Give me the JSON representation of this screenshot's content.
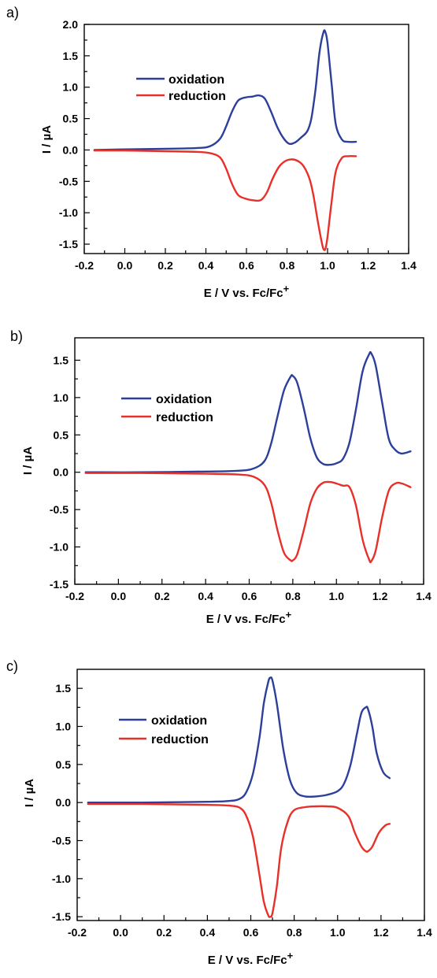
{
  "colors": {
    "oxidation": "#2c3f9a",
    "reduction": "#e8302a"
  },
  "chart_data": [
    {
      "type": "line",
      "panel_label": "a)",
      "xlabel": "E / V vs. Fc/Fc",
      "xlabel_sup": "+",
      "ylabel": "I / µA",
      "xlim": [
        -0.2,
        1.4
      ],
      "ylim": [
        -1.65,
        2.0
      ],
      "xticks": [
        -0.2,
        0.0,
        0.2,
        0.4,
        0.6,
        0.8,
        1.0,
        1.2,
        1.4
      ],
      "xtick_labels": [
        "-0.2",
        "0.0",
        "0.2",
        "0.4",
        "0.6",
        "0.8",
        "1.0",
        "1.2",
        "1.4"
      ],
      "yticks": [
        -1.5,
        -1.0,
        -0.5,
        0.0,
        0.5,
        1.0,
        1.5,
        2.0
      ],
      "ytick_labels": [
        "-1.5",
        "-1.0",
        "-0.5",
        "0.0",
        "0.5",
        "1.0",
        "1.5",
        "2.0"
      ],
      "legend": "upper-left",
      "series": [
        {
          "name": "oxidation",
          "x": [
            -0.15,
            0.0,
            0.2,
            0.35,
            0.42,
            0.47,
            0.5,
            0.53,
            0.56,
            0.6,
            0.63,
            0.66,
            0.69,
            0.72,
            0.75,
            0.78,
            0.81,
            0.84,
            0.87,
            0.9,
            0.92,
            0.94,
            0.96,
            0.98,
            0.99,
            1.0,
            1.02,
            1.04,
            1.07,
            1.1,
            1.14
          ],
          "y": [
            0.0,
            0.01,
            0.02,
            0.03,
            0.06,
            0.18,
            0.38,
            0.62,
            0.79,
            0.84,
            0.85,
            0.87,
            0.82,
            0.62,
            0.38,
            0.2,
            0.1,
            0.12,
            0.2,
            0.3,
            0.5,
            0.95,
            1.55,
            1.88,
            1.87,
            1.7,
            1.05,
            0.42,
            0.17,
            0.13,
            0.13
          ]
        },
        {
          "name": "reduction",
          "x": [
            -0.15,
            0.0,
            0.2,
            0.35,
            0.42,
            0.47,
            0.5,
            0.53,
            0.56,
            0.6,
            0.63,
            0.67,
            0.7,
            0.73,
            0.76,
            0.79,
            0.82,
            0.85,
            0.88,
            0.91,
            0.93,
            0.95,
            0.97,
            0.98,
            0.99,
            1.0,
            1.02,
            1.04,
            1.07,
            1.1,
            1.14
          ],
          "y": [
            -0.01,
            -0.01,
            -0.02,
            -0.03,
            -0.05,
            -0.12,
            -0.3,
            -0.55,
            -0.72,
            -0.78,
            -0.8,
            -0.8,
            -0.68,
            -0.45,
            -0.27,
            -0.18,
            -0.15,
            -0.17,
            -0.25,
            -0.45,
            -0.72,
            -1.1,
            -1.45,
            -1.58,
            -1.57,
            -1.38,
            -0.82,
            -0.35,
            -0.13,
            -0.1,
            -0.1
          ]
        }
      ]
    },
    {
      "type": "line",
      "panel_label": "b)",
      "xlabel": "E / V vs. Fc/Fc",
      "xlabel_sup": "+",
      "ylabel": "I / µA",
      "xlim": [
        -0.2,
        1.4
      ],
      "ylim": [
        -1.5,
        1.8
      ],
      "xticks": [
        -0.2,
        0.0,
        0.2,
        0.4,
        0.6,
        0.8,
        1.0,
        1.2,
        1.4
      ],
      "xtick_labels": [
        "-0.2",
        "0.0",
        "0.2",
        "0.4",
        "0.6",
        "0.8",
        "1.0",
        "1.2",
        "1.4"
      ],
      "yticks": [
        -1.5,
        -1.0,
        -0.5,
        0.0,
        0.5,
        1.0,
        1.5
      ],
      "ytick_labels": [
        "-1.5",
        "-1.0",
        "-0.5",
        "0.0",
        "0.5",
        "1.0",
        "1.5"
      ],
      "legend": "upper-left",
      "series": [
        {
          "name": "oxidation",
          "x": [
            -0.15,
            0.1,
            0.4,
            0.55,
            0.62,
            0.67,
            0.7,
            0.73,
            0.76,
            0.79,
            0.8,
            0.82,
            0.85,
            0.88,
            0.91,
            0.94,
            0.97,
            1.0,
            1.03,
            1.06,
            1.09,
            1.12,
            1.15,
            1.16,
            1.18,
            1.21,
            1.24,
            1.27,
            1.3,
            1.34
          ],
          "y": [
            0.0,
            0.0,
            0.01,
            0.02,
            0.05,
            0.15,
            0.38,
            0.75,
            1.1,
            1.28,
            1.29,
            1.2,
            0.86,
            0.46,
            0.2,
            0.11,
            0.1,
            0.12,
            0.18,
            0.4,
            0.85,
            1.35,
            1.58,
            1.59,
            1.43,
            0.93,
            0.45,
            0.3,
            0.25,
            0.28
          ]
        },
        {
          "name": "reduction",
          "x": [
            -0.15,
            0.1,
            0.4,
            0.55,
            0.62,
            0.67,
            0.7,
            0.73,
            0.76,
            0.79,
            0.8,
            0.82,
            0.85,
            0.88,
            0.91,
            0.94,
            0.97,
            1.0,
            1.03,
            1.06,
            1.09,
            1.12,
            1.15,
            1.16,
            1.18,
            1.21,
            1.24,
            1.27,
            1.3,
            1.34
          ],
          "y": [
            -0.01,
            -0.01,
            -0.02,
            -0.03,
            -0.06,
            -0.17,
            -0.4,
            -0.78,
            -1.08,
            -1.18,
            -1.18,
            -1.1,
            -0.78,
            -0.42,
            -0.22,
            -0.14,
            -0.13,
            -0.15,
            -0.18,
            -0.2,
            -0.45,
            -0.9,
            -1.17,
            -1.19,
            -1.05,
            -0.6,
            -0.25,
            -0.15,
            -0.15,
            -0.2
          ]
        }
      ]
    },
    {
      "type": "line",
      "panel_label": "c)",
      "xlabel": "E / V vs. Fc/Fc",
      "xlabel_sup": "+",
      "ylabel": "I / µA",
      "xlim": [
        -0.2,
        1.4
      ],
      "ylim": [
        -1.55,
        1.75
      ],
      "xticks": [
        -0.2,
        0.0,
        0.2,
        0.4,
        0.6,
        0.8,
        1.0,
        1.2,
        1.4
      ],
      "xtick_labels": [
        "-0.2",
        "0.0",
        "0.2",
        "0.4",
        "0.6",
        "0.8",
        "1.0",
        "1.2",
        "1.4"
      ],
      "yticks": [
        -1.5,
        -1.0,
        -0.5,
        0.0,
        0.5,
        1.0,
        1.5
      ],
      "ytick_labels": [
        "-1.5",
        "-1.0",
        "-0.5",
        "0.0",
        "0.5",
        "1.0",
        "1.5"
      ],
      "legend": "upper-left",
      "series": [
        {
          "name": "oxidation",
          "x": [
            -0.15,
            0.1,
            0.4,
            0.5,
            0.55,
            0.58,
            0.61,
            0.64,
            0.66,
            0.68,
            0.69,
            0.7,
            0.72,
            0.75,
            0.78,
            0.81,
            0.85,
            0.9,
            0.95,
            1.0,
            1.03,
            1.06,
            1.09,
            1.11,
            1.13,
            1.14,
            1.16,
            1.18,
            1.21,
            1.24
          ],
          "y": [
            0.0,
            0.0,
            0.01,
            0.02,
            0.05,
            0.14,
            0.38,
            0.85,
            1.3,
            1.58,
            1.64,
            1.6,
            1.3,
            0.7,
            0.3,
            0.13,
            0.08,
            0.08,
            0.1,
            0.15,
            0.25,
            0.5,
            0.92,
            1.18,
            1.25,
            1.23,
            1.0,
            0.65,
            0.4,
            0.32
          ]
        },
        {
          "name": "reduction",
          "x": [
            -0.15,
            0.1,
            0.4,
            0.5,
            0.55,
            0.58,
            0.61,
            0.64,
            0.66,
            0.68,
            0.69,
            0.7,
            0.72,
            0.74,
            0.77,
            0.8,
            0.85,
            0.9,
            0.95,
            1.0,
            1.05,
            1.08,
            1.11,
            1.13,
            1.14,
            1.16,
            1.19,
            1.22,
            1.24
          ],
          "y": [
            -0.02,
            -0.02,
            -0.03,
            -0.04,
            -0.07,
            -0.18,
            -0.45,
            -0.95,
            -1.3,
            -1.48,
            -1.5,
            -1.45,
            -1.1,
            -0.6,
            -0.25,
            -0.1,
            -0.06,
            -0.05,
            -0.05,
            -0.07,
            -0.18,
            -0.4,
            -0.58,
            -0.64,
            -0.64,
            -0.58,
            -0.4,
            -0.3,
            -0.28
          ]
        }
      ]
    }
  ]
}
